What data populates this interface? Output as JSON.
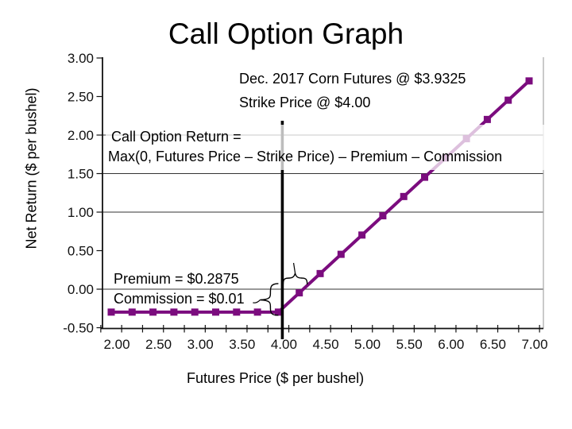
{
  "title": "Call Option Graph",
  "chart_data": {
    "type": "line",
    "title": "Call Option Graph",
    "xlabel": "Futures Price ($ per bushel)",
    "ylabel": "Net Return ($ per bushel)",
    "xlim": [
      2.0,
      7.0
    ],
    "ylim": [
      -0.5,
      3.0
    ],
    "grid": "horizontal gridlines at 2.00, 1.50, 1.00, 0.00 only",
    "gridline_values": [
      2.0,
      1.5,
      1.0,
      0.0
    ],
    "x_ticks": {
      "labels": [
        "2.00",
        "2.50",
        "3.00",
        "3.50",
        "4.00",
        "4.50",
        "5.00",
        "5.50",
        "6.00",
        "6.50",
        "7.00"
      ],
      "values": [
        2.0,
        2.5,
        3.0,
        3.5,
        4.0,
        4.5,
        5.0,
        5.5,
        6.0,
        6.5,
        7.0
      ],
      "minor_step": 0.25
    },
    "y_ticks": {
      "labels": [
        "3.00",
        "2.50",
        "2.00",
        "1.50",
        "1.00",
        "0.50",
        "0.00",
        "-0.50"
      ],
      "values": [
        3.0,
        2.5,
        2.0,
        1.5,
        1.0,
        0.5,
        0.0,
        -0.5
      ]
    },
    "series": [
      {
        "name": "Call Option Return",
        "color": "#7B0C7E",
        "marker": "square",
        "x": [
          2.0,
          2.25,
          2.5,
          2.75,
          3.0,
          3.25,
          3.5,
          3.75,
          4.0,
          4.25,
          4.5,
          4.75,
          5.0,
          5.25,
          5.5,
          5.75,
          6.0,
          6.25,
          6.5,
          6.75,
          7.0
        ],
        "y": [
          -0.2975,
          -0.2975,
          -0.2975,
          -0.2975,
          -0.2975,
          -0.2975,
          -0.2975,
          -0.2975,
          -0.2975,
          -0.0475,
          0.2025,
          0.4525,
          0.7025,
          0.9525,
          1.2025,
          1.4525,
          1.7025,
          1.9525,
          2.2025,
          2.4525,
          2.7025
        ]
      }
    ],
    "strike_line_x": 4.0,
    "breakeven_x": 4.2975,
    "flat_return": -0.2975,
    "colors": {
      "series_purple": "#7B0C7E",
      "strike_line": "#000000",
      "gridline": "#333333",
      "plot_right_border": "#A6A6A6",
      "axis": "#111111"
    }
  },
  "annotations": {
    "futures": "Dec. 2017 Corn Futures @ $3.9325",
    "strike": "Strike Price @ $4.00",
    "formula_line1": "Call Option Return =",
    "formula_line2": "Max(0, Futures Price – Strike Price) – Premium – Commission",
    "premium": "Premium = $0.2875",
    "commission": "Commission = $0.01"
  }
}
